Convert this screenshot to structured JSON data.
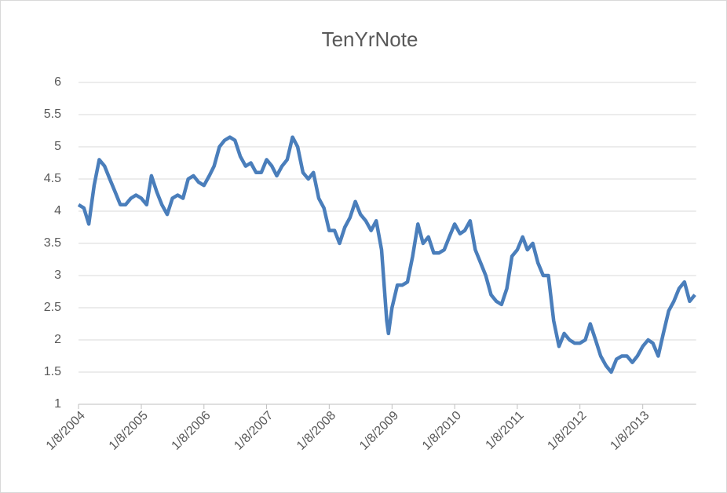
{
  "chart_data": {
    "type": "line",
    "title": "TenYrNote",
    "x": [
      "1/8/2004",
      "2/8/2004",
      "3/8/2004",
      "4/8/2004",
      "5/8/2004",
      "6/8/2004",
      "7/8/2004",
      "8/8/2004",
      "9/8/2004",
      "10/8/2004",
      "11/8/2004",
      "12/8/2004",
      "1/8/2005",
      "2/8/2005",
      "3/8/2005",
      "4/8/2005",
      "5/8/2005",
      "6/8/2005",
      "7/8/2005",
      "8/8/2005",
      "9/8/2005",
      "10/8/2005",
      "11/8/2005",
      "12/8/2005",
      "1/8/2006",
      "2/8/2006",
      "3/8/2006",
      "4/8/2006",
      "5/8/2006",
      "6/8/2006",
      "7/8/2006",
      "8/8/2006",
      "9/8/2006",
      "10/8/2006",
      "11/8/2006",
      "12/8/2006",
      "1/8/2007",
      "2/8/2007",
      "3/8/2007",
      "4/8/2007",
      "5/8/2007",
      "6/8/2007",
      "7/8/2007",
      "8/8/2007",
      "9/8/2007",
      "10/8/2007",
      "11/8/2007",
      "12/8/2007",
      "1/8/2008",
      "2/8/2008",
      "3/8/2008",
      "4/8/2008",
      "5/8/2008",
      "6/8/2008",
      "7/8/2008",
      "8/8/2008",
      "9/8/2008",
      "10/8/2008",
      "11/8/2008",
      "12/8/2008",
      "12/18/2008",
      "1/8/2009",
      "2/8/2009",
      "3/8/2009",
      "4/8/2009",
      "5/8/2009",
      "6/8/2009",
      "7/8/2009",
      "8/8/2009",
      "9/8/2009",
      "10/8/2009",
      "11/8/2009",
      "12/8/2009",
      "1/8/2010",
      "2/8/2010",
      "3/8/2010",
      "4/8/2010",
      "5/8/2010",
      "6/8/2010",
      "7/8/2010",
      "8/8/2010",
      "9/8/2010",
      "10/8/2010",
      "11/8/2010",
      "12/8/2010",
      "1/8/2011",
      "2/8/2011",
      "3/8/2011",
      "4/8/2011",
      "5/8/2011",
      "6/8/2011",
      "7/8/2011",
      "8/8/2011",
      "9/8/2011",
      "10/8/2011",
      "11/8/2011",
      "12/8/2011",
      "1/8/2012",
      "2/8/2012",
      "3/8/2012",
      "4/8/2012",
      "5/8/2012",
      "6/8/2012",
      "7/8/2012",
      "8/8/2012",
      "9/8/2012",
      "10/8/2012",
      "11/8/2012",
      "12/8/2012",
      "1/8/2013",
      "2/8/2013",
      "3/8/2013",
      "4/8/2013",
      "5/8/2013",
      "6/8/2013",
      "7/8/2013",
      "8/8/2013",
      "9/8/2013",
      "10/8/2013",
      "11/8/2013"
    ],
    "series": [
      {
        "name": "TenYrNote",
        "color": "#4a7ebb",
        "values": [
          4.1,
          4.05,
          3.8,
          4.4,
          4.8,
          4.7,
          4.5,
          4.3,
          4.1,
          4.1,
          4.2,
          4.25,
          4.2,
          4.1,
          4.55,
          4.3,
          4.1,
          3.95,
          4.2,
          4.25,
          4.2,
          4.5,
          4.55,
          4.45,
          4.4,
          4.55,
          4.7,
          5.0,
          5.1,
          5.15,
          5.1,
          4.85,
          4.7,
          4.75,
          4.6,
          4.6,
          4.8,
          4.7,
          4.55,
          4.7,
          4.8,
          5.15,
          5.0,
          4.6,
          4.5,
          4.6,
          4.2,
          4.05,
          3.7,
          3.7,
          3.5,
          3.75,
          3.9,
          4.15,
          3.95,
          3.85,
          3.7,
          3.85,
          3.4,
          2.3,
          2.1,
          2.5,
          2.85,
          2.85,
          2.9,
          3.3,
          3.8,
          3.5,
          3.6,
          3.35,
          3.35,
          3.4,
          3.6,
          3.8,
          3.65,
          3.7,
          3.85,
          3.4,
          3.2,
          3.0,
          2.7,
          2.6,
          2.55,
          2.8,
          3.3,
          3.4,
          3.6,
          3.4,
          3.5,
          3.2,
          3.0,
          3.0,
          2.3,
          1.9,
          2.1,
          2.0,
          1.95,
          1.95,
          2.0,
          2.25,
          2.0,
          1.75,
          1.6,
          1.5,
          1.7,
          1.75,
          1.75,
          1.65,
          1.75,
          1.9,
          2.0,
          1.95,
          1.75,
          2.1,
          2.45,
          2.6,
          2.8,
          2.9,
          2.6,
          2.7
        ]
      }
    ],
    "xlim": [
      "1/8/2004",
      "11/15/2013"
    ],
    "xticks": [
      "1/8/2004",
      "1/8/2005",
      "1/8/2006",
      "1/8/2007",
      "1/8/2008",
      "1/8/2009",
      "1/8/2010",
      "1/8/2011",
      "1/8/2012",
      "1/8/2013"
    ],
    "ylim": [
      1,
      6
    ],
    "yticks": [
      1,
      1.5,
      2,
      2.5,
      3,
      3.5,
      4,
      4.5,
      5,
      5.5,
      6
    ],
    "grid": true
  }
}
